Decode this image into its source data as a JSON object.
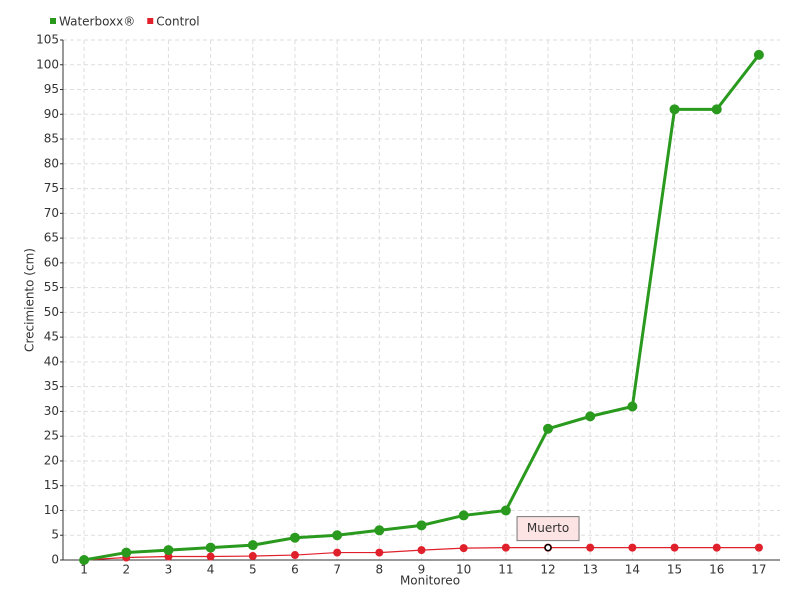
{
  "chart_data": {
    "type": "line",
    "x_label": "Monitoreo",
    "y_label": "Crecimiento (cm)",
    "categories": [
      "1",
      "2",
      "3",
      "4",
      "5",
      "6",
      "7",
      "8",
      "9",
      "10",
      "11",
      "12",
      "13",
      "14",
      "15",
      "16",
      "17"
    ],
    "series": [
      {
        "name": "Waterboxx®",
        "color": "#2a9a1f",
        "values": [
          0,
          1.5,
          2,
          2.5,
          3,
          4.5,
          5,
          6,
          7,
          9,
          10,
          26.5,
          29,
          31,
          91,
          91,
          102
        ]
      },
      {
        "name": "Control",
        "color": "#e0202a",
        "values": [
          0,
          0.5,
          0.7,
          0.7,
          0.8,
          1,
          1.5,
          1.5,
          2,
          2.4,
          2.5,
          2.5,
          2.5,
          2.5,
          2.5,
          2.5,
          2.5
        ]
      }
    ],
    "annotation": "Muerto",
    "ylim": [
      0,
      105
    ],
    "yticks": [
      0,
      5,
      10,
      15,
      20,
      25,
      30,
      35,
      40,
      45,
      50,
      55,
      60,
      65,
      70,
      75,
      80,
      85,
      90,
      95,
      100,
      105
    ],
    "grid": true,
    "legend": "top-left"
  }
}
